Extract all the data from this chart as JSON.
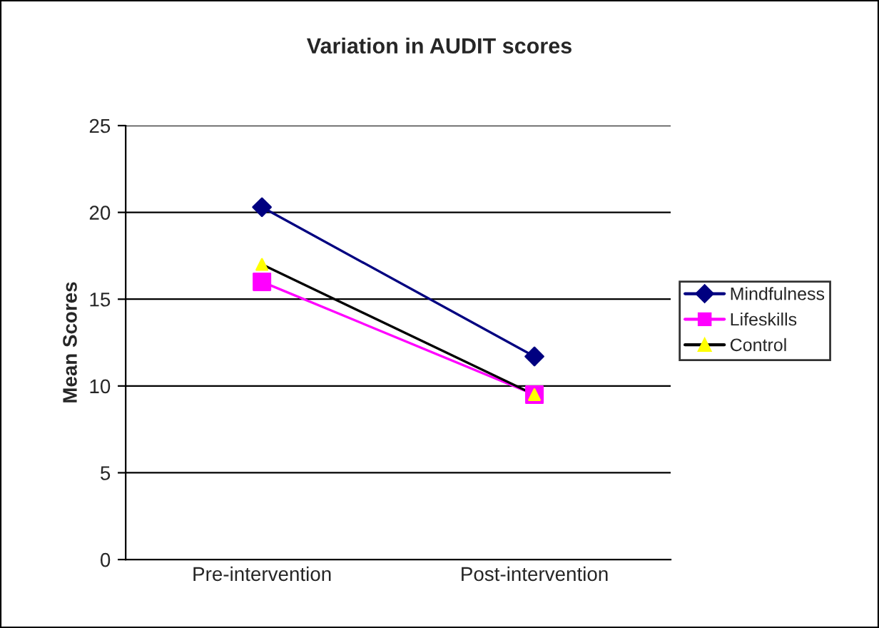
{
  "chart_data": {
    "type": "line",
    "title": "Variation in AUDIT scores",
    "ylabel": "Mean Scores",
    "categories": [
      "Pre-intervention",
      "Post-intervention"
    ],
    "series": [
      {
        "name": "Mindfulness",
        "color": "#000080",
        "values": [
          20.3,
          11.7
        ],
        "marker": "diamond"
      },
      {
        "name": "Lifeskills",
        "color": "#ff00ff",
        "values": [
          16.0,
          9.5
        ],
        "marker": "square"
      },
      {
        "name": "Control",
        "color": "#000000",
        "values": [
          17.0,
          9.5
        ],
        "marker": "triangle"
      }
    ],
    "ylim": [
      0,
      25
    ],
    "yticks": [
      0,
      5,
      10,
      15,
      20,
      25
    ],
    "grid": "y",
    "legend": "right",
    "line_style": "solid"
  }
}
